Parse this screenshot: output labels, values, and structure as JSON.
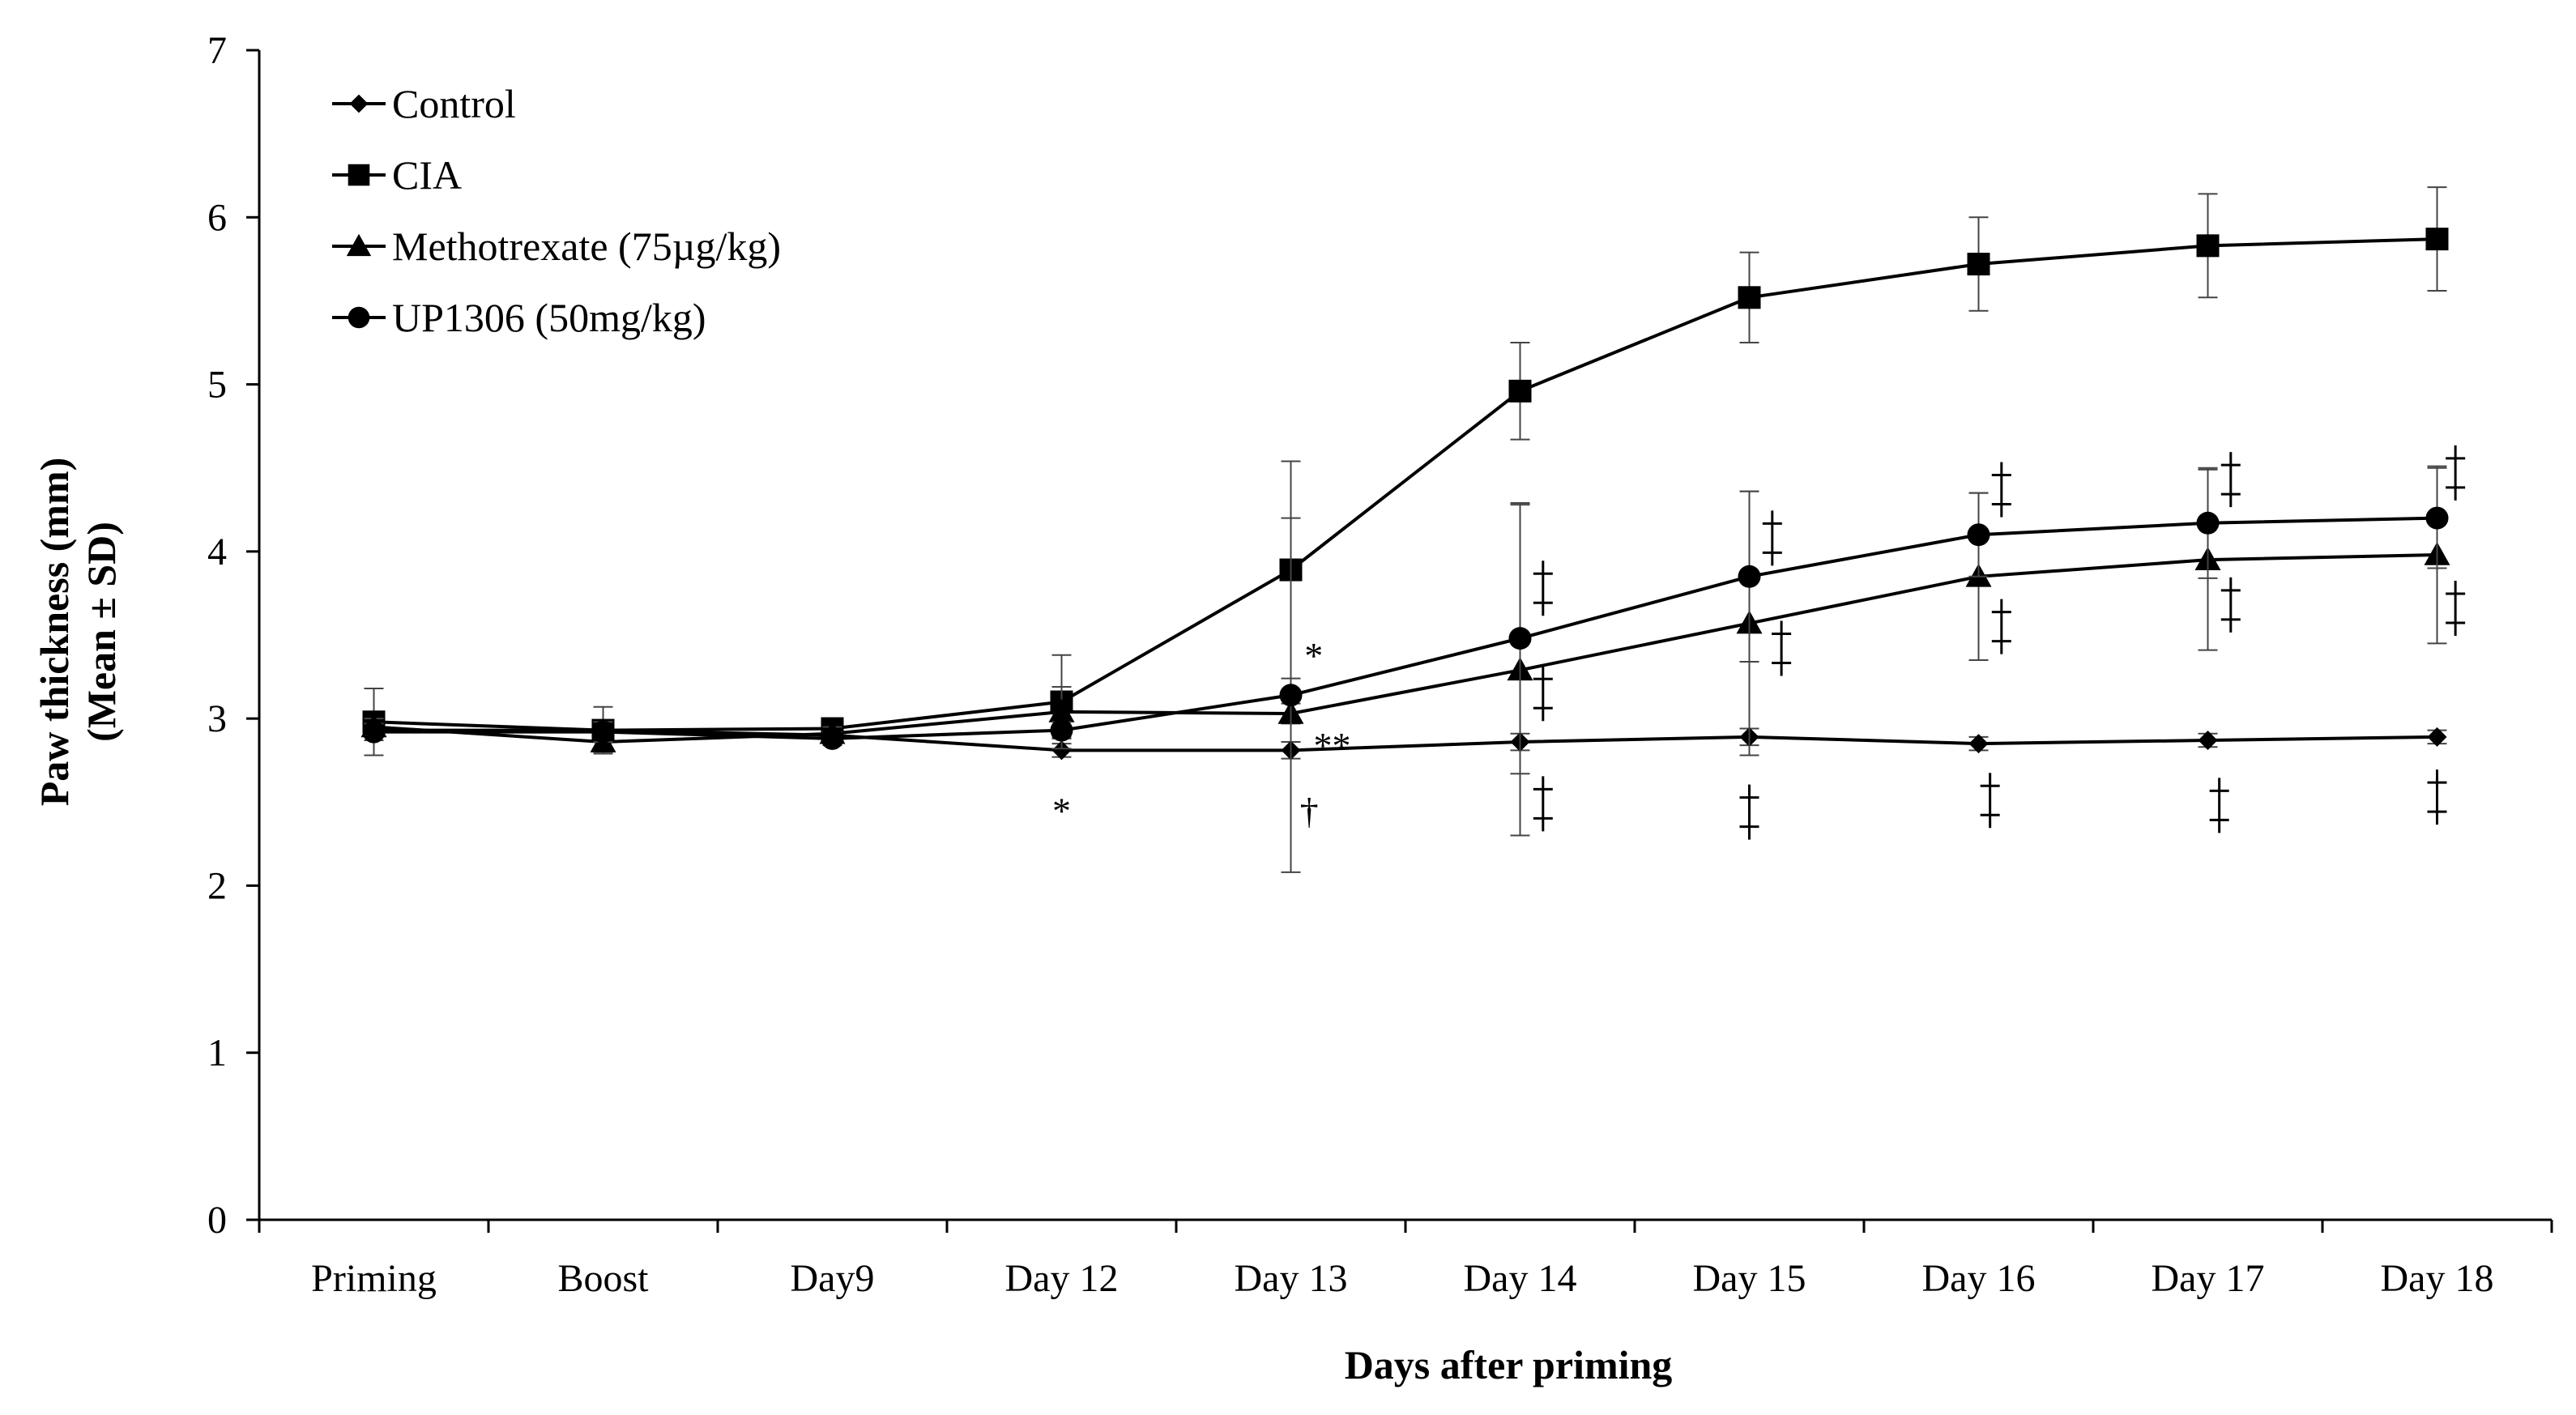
{
  "chart_data": {
    "type": "line",
    "title": "",
    "xlabel": "Days after priming",
    "ylabel": "Paw thickness (mm)",
    "ylabel2": "(Mean ± SD)",
    "ylim": [
      0,
      7
    ],
    "yticks": [
      "0",
      "1",
      "2",
      "3",
      "4",
      "5",
      "6",
      "7"
    ],
    "grid": false,
    "legend_position": "top-left",
    "categories": [
      "Priming",
      "Boost",
      "Day9",
      "Day 12",
      "Day 13",
      "Day 14",
      "Day 15",
      "Day 16",
      "Day 17",
      "Day 18"
    ],
    "series": [
      {
        "name": "Control",
        "marker": "diamond",
        "values": [
          2.93,
          2.93,
          2.9,
          2.81,
          2.81,
          2.86,
          2.89,
          2.85,
          2.87,
          2.89
        ],
        "err": [
          0.06,
          0.06,
          0.04,
          0.04,
          0.05,
          0.05,
          0.05,
          0.04,
          0.04,
          0.04
        ]
      },
      {
        "name": "CIA",
        "marker": "square",
        "values": [
          2.98,
          2.93,
          2.94,
          3.1,
          3.89,
          4.96,
          5.52,
          5.72,
          5.83,
          5.87
        ],
        "err": [
          0.2,
          0.14,
          0.04,
          0.28,
          0.65,
          0.29,
          0.27,
          0.28,
          0.31,
          0.31
        ]
      },
      {
        "name": "Methotrexate (75µg/kg)",
        "marker": "triangle",
        "values": [
          2.95,
          2.86,
          2.91,
          3.04,
          3.03,
          3.29,
          3.57,
          3.85,
          3.95,
          3.98
        ],
        "err": [
          0.05,
          0.06,
          0.04,
          0.15,
          0.06,
          0.99,
          0.79,
          0.5,
          0.54,
          0.53
        ]
      },
      {
        "name": "UP1306 (50mg/kg)",
        "marker": "circle",
        "values": [
          2.92,
          2.92,
          2.88,
          2.93,
          3.14,
          3.48,
          3.85,
          4.1,
          4.17,
          4.2
        ],
        "err": [
          0.05,
          0.06,
          0.04,
          0.05,
          1.06,
          0.81,
          0.51,
          0.25,
          0.33,
          0.3
        ]
      }
    ],
    "annotations": [
      {
        "category": "Day 12",
        "y": 2.45,
        "text": "*"
      },
      {
        "category": "Day 13",
        "y": 3.38,
        "text": "*",
        "dx": 0.1
      },
      {
        "category": "Day 13",
        "y": 2.84,
        "text": "**",
        "dx": 0.18
      },
      {
        "category": "Day 13",
        "y": 2.45,
        "text": "†",
        "dx": 0.08
      },
      {
        "category": "Day 14",
        "y": 3.78,
        "text": "‡",
        "dx": 0.1
      },
      {
        "category": "Day 14",
        "y": 3.15,
        "text": "‡",
        "dx": 0.1
      },
      {
        "category": "Day 14",
        "y": 2.49,
        "text": "‡",
        "dx": 0.1
      },
      {
        "category": "Day 15",
        "y": 4.08,
        "text": "‡",
        "dx": 0.1
      },
      {
        "category": "Day 15",
        "y": 3.42,
        "text": "‡",
        "dx": 0.14
      },
      {
        "category": "Day 15",
        "y": 2.44,
        "text": "‡",
        "dx": 0.0
      },
      {
        "category": "Day 16",
        "y": 4.37,
        "text": "‡",
        "dx": 0.1
      },
      {
        "category": "Day 16",
        "y": 3.55,
        "text": "‡",
        "dx": 0.1
      },
      {
        "category": "Day 16",
        "y": 2.51,
        "text": "‡",
        "dx": 0.05
      },
      {
        "category": "Day 17",
        "y": 4.43,
        "text": "‡",
        "dx": 0.1
      },
      {
        "category": "Day 17",
        "y": 3.68,
        "text": "‡",
        "dx": 0.1
      },
      {
        "category": "Day 17",
        "y": 2.48,
        "text": "‡",
        "dx": 0.05
      },
      {
        "category": "Day 18",
        "y": 4.47,
        "text": "‡",
        "dx": 0.08
      },
      {
        "category": "Day 18",
        "y": 3.66,
        "text": "‡",
        "dx": 0.08
      },
      {
        "category": "Day 18",
        "y": 2.53,
        "text": "‡",
        "dx": 0.0
      }
    ]
  }
}
